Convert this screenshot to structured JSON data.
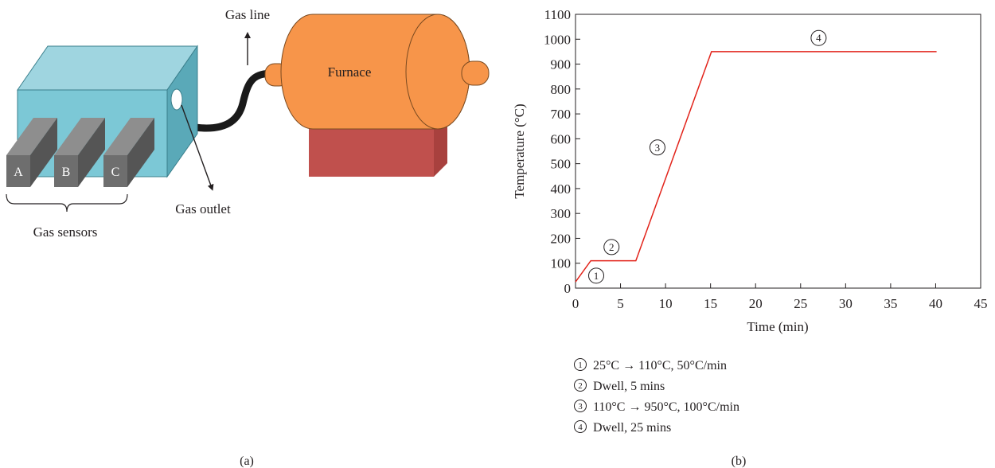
{
  "panel_a": {
    "caption": "(a)",
    "labels": {
      "gas_line": "Gas line",
      "furnace": "Furnace",
      "gas_outlet": "Gas outlet",
      "gas_sensors": "Gas sensors"
    },
    "sensors": [
      "A",
      "B",
      "C"
    ],
    "colors": {
      "box_front": "#7cc8d6",
      "box_top": "#9fd5e0",
      "box_side": "#5aa9b8",
      "sensor_front": "#6e6e6e",
      "sensor_top": "#8e8e8e",
      "sensor_side": "#555555",
      "furnace_body": "#f7954a",
      "furnace_stand": "#c0504d",
      "hose": "#1a1a1a"
    }
  },
  "panel_b": {
    "caption": "(b)",
    "legend": [
      {
        "marker": "1",
        "text": "25°C → 110°C, 50°C/min"
      },
      {
        "marker": "2",
        "text": "Dwell, 5 mins"
      },
      {
        "marker": "3",
        "text": "110°C → 950°C, 100°C/min"
      },
      {
        "marker": "4",
        "text": "Dwell, 25 mins"
      }
    ]
  },
  "chart_data": {
    "type": "line",
    "title": "",
    "xlabel": "Time (min)",
    "ylabel": "Temperature (°C)",
    "xlim": [
      0,
      45
    ],
    "ylim": [
      0,
      1100
    ],
    "xticks": [
      0,
      5,
      10,
      15,
      20,
      25,
      30,
      35,
      40,
      45
    ],
    "yticks": [
      0,
      100,
      200,
      300,
      400,
      500,
      600,
      700,
      800,
      900,
      1000,
      1100
    ],
    "grid": false,
    "series": [
      {
        "color": "#e2231a",
        "x": [
          0,
          1.7,
          6.7,
          15.1,
          40.1
        ],
        "y": [
          25,
          110,
          110,
          950,
          950
        ]
      }
    ],
    "annotations": [
      {
        "text": "1",
        "x": 2.3,
        "y": 50
      },
      {
        "text": "2",
        "x": 4.0,
        "y": 165
      },
      {
        "text": "3",
        "x": 9.1,
        "y": 565
      },
      {
        "text": "4",
        "x": 27.0,
        "y": 1005
      }
    ]
  }
}
